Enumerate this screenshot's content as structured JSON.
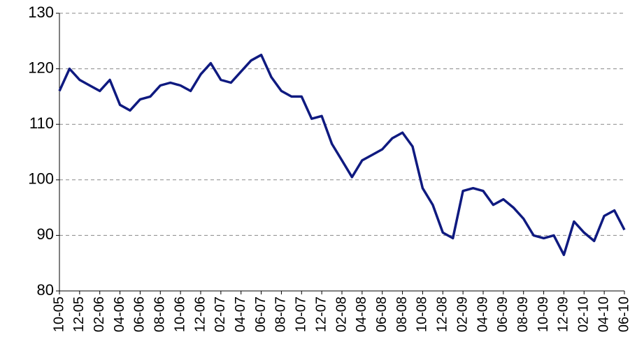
{
  "chart_data": {
    "type": "line",
    "categories": [
      "10-05",
      null,
      "12-05",
      null,
      "02-06",
      null,
      "04-06",
      null,
      "06-06",
      null,
      "08-06",
      null,
      "10-06",
      null,
      "12-06",
      null,
      "02-07",
      null,
      "04-07",
      null,
      "06-07",
      null,
      "08-07",
      null,
      "10-07",
      null,
      "12-07",
      null,
      "02-08",
      null,
      "04-08",
      null,
      "06-08",
      null,
      "08-08",
      null,
      "10-08",
      null,
      "12-08",
      null,
      "02-09",
      null,
      "04-09",
      null,
      "06-09",
      null,
      "08-09",
      null,
      "10-09",
      null,
      "12-09",
      null,
      "02-10",
      null,
      "04-10",
      null,
      "06-10"
    ],
    "series": [
      {
        "color": "#0f1a80",
        "values": [
          116,
          120,
          118,
          117,
          116,
          118,
          113.5,
          112.5,
          114.5,
          115,
          117,
          117.5,
          117,
          116,
          119,
          121,
          118,
          117.5,
          119.5,
          121.5,
          122.5,
          118.5,
          116,
          115,
          115,
          111,
          111.5,
          106.5,
          103.5,
          100.5,
          103.5,
          104.5,
          105.5,
          107.5,
          108.5,
          106,
          98.5,
          95.5,
          90.5,
          89.5,
          98,
          98.5,
          98,
          95.5,
          96.5,
          95,
          93,
          90,
          89.5,
          90,
          86.5,
          92.5,
          90.5,
          89,
          93.5,
          94.5,
          91
        ]
      }
    ],
    "ylim": [
      80,
      130
    ],
    "yticks": [
      80,
      90,
      100,
      110,
      120,
      130
    ],
    "grid": true
  }
}
